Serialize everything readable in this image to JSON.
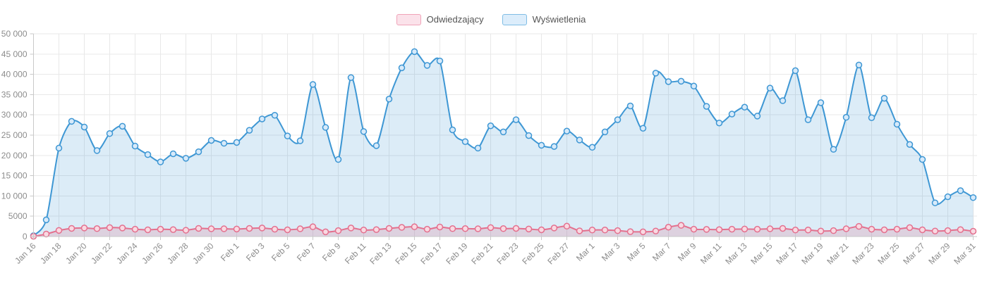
{
  "legend": {
    "items": [
      {
        "label": "Odwiedzający"
      },
      {
        "label": "Wyświetlenia"
      }
    ]
  },
  "chart_data": {
    "type": "area",
    "title": "",
    "xlabel": "",
    "ylabel": "",
    "ylim": [
      0,
      50000
    ],
    "y_tick_step": 5000,
    "y_tick_labels": [
      "0",
      "5000",
      "10 000",
      "15 000",
      "20 000",
      "25 000",
      "30 000",
      "35 000",
      "40 000",
      "45 000",
      "50 000"
    ],
    "grid": true,
    "legend_position": "top",
    "x_label_every": 2,
    "x": [
      "Jan 16",
      "Jan 17",
      "Jan 18",
      "Jan 19",
      "Jan 20",
      "Jan 21",
      "Jan 22",
      "Jan 23",
      "Jan 24",
      "Jan 25",
      "Jan 26",
      "Jan 27",
      "Jan 28",
      "Jan 29",
      "Jan 30",
      "Jan 31",
      "Feb 1",
      "Feb 2",
      "Feb 3",
      "Feb 4",
      "Feb 5",
      "Feb 6",
      "Feb 7",
      "Feb 8",
      "Feb 9",
      "Feb 10",
      "Feb 11",
      "Feb 12",
      "Feb 13",
      "Feb 14",
      "Feb 15",
      "Feb 16",
      "Feb 17",
      "Feb 18",
      "Feb 19",
      "Feb 20",
      "Feb 21",
      "Feb 22",
      "Feb 23",
      "Feb 24",
      "Feb 25",
      "Feb 26",
      "Feb 27",
      "Feb 28",
      "Mar 1",
      "Mar 2",
      "Mar 3",
      "Mar 4",
      "Mar 5",
      "Mar 6",
      "Mar 7",
      "Mar 8",
      "Mar 9",
      "Mar 10",
      "Mar 11",
      "Mar 12",
      "Mar 13",
      "Mar 14",
      "Mar 15",
      "Mar 16",
      "Mar 17",
      "Mar 18",
      "Mar 19",
      "Mar 20",
      "Mar 21",
      "Mar 22",
      "Mar 23",
      "Mar 24",
      "Mar 25",
      "Mar 26",
      "Mar 27",
      "Mar 28",
      "Mar 29",
      "Mar 30",
      "Mar 31"
    ],
    "series": [
      {
        "name": "Odwiedzający",
        "color": "#e4708e",
        "fill": "rgba(228,112,141,0.22)",
        "marker_fill": "#f9d9e2",
        "swatch": {
          "fill": "#fbe2ea",
          "border": "#f0a3b8"
        },
        "values": [
          50,
          600,
          1500,
          2000,
          2100,
          1950,
          2200,
          2100,
          1800,
          1650,
          1800,
          1700,
          1550,
          2000,
          1900,
          1900,
          1850,
          2000,
          2100,
          1800,
          1650,
          1900,
          2400,
          1150,
          1450,
          2100,
          1600,
          1700,
          2000,
          2250,
          2400,
          1800,
          2350,
          1950,
          1950,
          1900,
          2200,
          1950,
          2000,
          1850,
          1650,
          2100,
          2550,
          1400,
          1600,
          1600,
          1450,
          1200,
          1150,
          1350,
          2300,
          2750,
          1800,
          1750,
          1700,
          1800,
          1850,
          1800,
          1900,
          2000,
          1600,
          1600,
          1350,
          1450,
          1900,
          2500,
          1800,
          1650,
          1800,
          2200,
          1650,
          1350,
          1450,
          1700,
          1300
        ]
      },
      {
        "name": "Wyświetlenia",
        "color": "#3e97d4",
        "fill": "rgba(62,151,212,0.18)",
        "marker_fill": "#d7eafa",
        "swatch": {
          "fill": "#dcedfb",
          "border": "#7fbde5"
        },
        "values": [
          200,
          4100,
          21800,
          28400,
          27000,
          21200,
          25400,
          27200,
          22300,
          20200,
          18400,
          20400,
          19300,
          20900,
          23700,
          23000,
          23200,
          26200,
          29000,
          29900,
          24800,
          23600,
          37500,
          26900,
          19000,
          39200,
          25900,
          22400,
          33900,
          41600,
          45600,
          42200,
          43300,
          26300,
          23400,
          21800,
          27300,
          25800,
          28800,
          24900,
          22500,
          22200,
          26000,
          23800,
          22000,
          25800,
          28800,
          32200,
          26700,
          40300,
          38200,
          38300,
          37100,
          32100,
          28000,
          30200,
          31900,
          29700,
          36600,
          33500,
          40900,
          28800,
          33000,
          21500,
          29400,
          42300,
          29300,
          34100,
          27700,
          22700,
          19000,
          8300,
          9800,
          11300,
          9600
        ]
      }
    ]
  }
}
